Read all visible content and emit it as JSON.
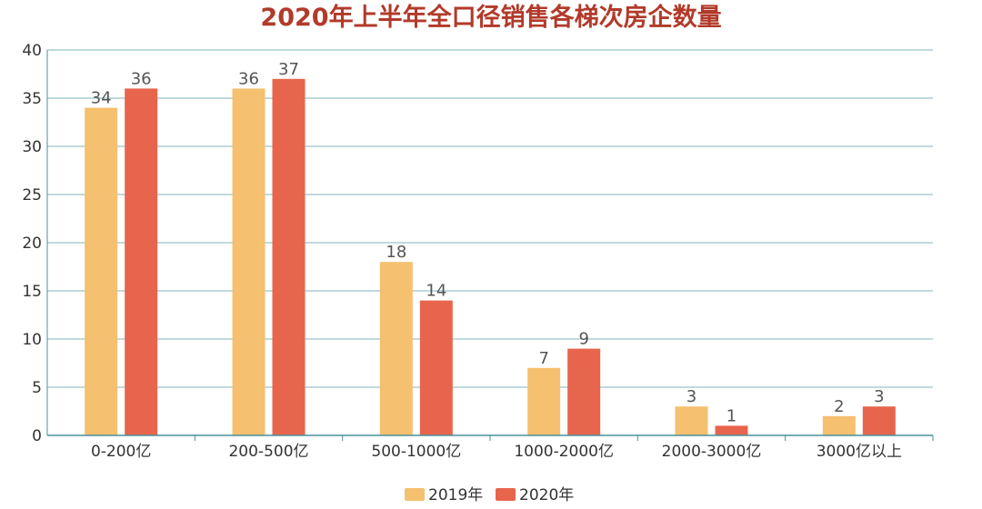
{
  "chart_data": {
    "type": "bar",
    "title": "2020年上半年全口径销售各梯次房企数量",
    "categories": [
      "0-200亿",
      "200-500亿",
      "500-1000亿",
      "1000-2000亿",
      "2000-3000亿",
      "3000亿以上"
    ],
    "series": [
      {
        "name": "2019年",
        "values": [
          34,
          36,
          18,
          7,
          3,
          2
        ],
        "color": "#f5c06f"
      },
      {
        "name": "2020年",
        "values": [
          36,
          37,
          14,
          9,
          1,
          3
        ],
        "color": "#e8654d"
      }
    ],
    "ylim": [
      0,
      40
    ],
    "yticks": [
      0,
      5,
      10,
      15,
      20,
      25,
      30,
      35,
      40
    ],
    "grid": true,
    "legend": "bottom-center"
  },
  "colors": {
    "title": "#b23a2a",
    "grid": "#7fb5bd",
    "axis": "#4a8f99"
  }
}
